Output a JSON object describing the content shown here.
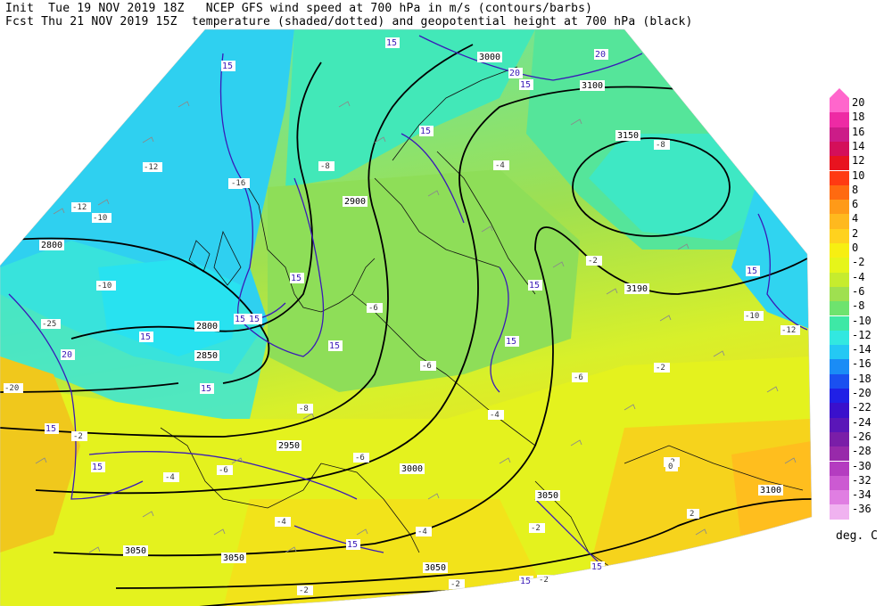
{
  "header": {
    "line1_left": "Init  Tue 19 NOV 2019 18Z",
    "line1_right": "NCEP GFS wind speed at 700 hPa in m/s (contours/barbs)",
    "line2_left": "Fcst Thu 21 NOV 2019 15Z",
    "line2_right": "temperature (shaded/dotted) and geopotential height at 700 hPa (black)"
  },
  "colorbar": {
    "units": "deg. C",
    "levels": [
      {
        "label": "20",
        "color": "#ff66cc"
      },
      {
        "label": "18",
        "color": "#ee2aa4"
      },
      {
        "label": "16",
        "color": "#cc1c88"
      },
      {
        "label": "14",
        "color": "#d40f5a"
      },
      {
        "label": "12",
        "color": "#e8131f"
      },
      {
        "label": "10",
        "color": "#ff3a12"
      },
      {
        "label": "8",
        "color": "#ff6a10"
      },
      {
        "label": "6",
        "color": "#ff9a18"
      },
      {
        "label": "4",
        "color": "#ffb91e"
      },
      {
        "label": "2",
        "color": "#ffd21e"
      },
      {
        "label": "0",
        "color": "#f7ef12"
      },
      {
        "label": "-2",
        "color": "#e6f51a"
      },
      {
        "label": "-4",
        "color": "#c6ec2e"
      },
      {
        "label": "-6",
        "color": "#9fe050"
      },
      {
        "label": "-8",
        "color": "#6ee36e"
      },
      {
        "label": "-10",
        "color": "#3ee8a6"
      },
      {
        "label": "-12",
        "color": "#32e8e0"
      },
      {
        "label": "-14",
        "color": "#24c8f4"
      },
      {
        "label": "-16",
        "color": "#1a8cf6"
      },
      {
        "label": "-18",
        "color": "#1a50f0"
      },
      {
        "label": "-20",
        "color": "#2020e6"
      },
      {
        "label": "-22",
        "color": "#3a10cc"
      },
      {
        "label": "-24",
        "color": "#5a16b8"
      },
      {
        "label": "-26",
        "color": "#7a1ea8"
      },
      {
        "label": "-28",
        "color": "#982aaa"
      },
      {
        "label": "-30",
        "color": "#b43cc0"
      },
      {
        "label": "-32",
        "color": "#cc5ad2"
      },
      {
        "label": "-34",
        "color": "#e07ee2"
      },
      {
        "label": "-36",
        "color": "#f0b2f0"
      }
    ]
  },
  "height_labels": [
    "3000",
    "3100",
    "3150",
    "2800",
    "2900",
    "3190",
    "2850",
    "2950",
    "3000",
    "3050",
    "3100",
    "3050",
    "3050",
    "3050",
    "2800"
  ],
  "wind_labels": [
    "15",
    "20",
    "15",
    "20",
    "15",
    "15",
    "15",
    "15",
    "15",
    "15",
    "15",
    "15",
    "15",
    "20",
    "15",
    "15",
    "15",
    "15",
    "15",
    "15",
    "15",
    "15"
  ],
  "temp_labels": [
    "-8",
    "-4",
    "-8",
    "-10",
    "-12",
    "-12",
    "-10",
    "-16",
    "-6",
    "-6",
    "-2",
    "-2",
    "-6",
    "-4",
    "-8",
    "-10",
    "-6",
    "-6",
    "-4",
    "-2",
    "-2",
    "-4",
    "-2",
    "-4",
    "-2",
    "0",
    "2",
    "-2",
    "-20",
    "-2",
    "-12",
    "-25"
  ]
}
